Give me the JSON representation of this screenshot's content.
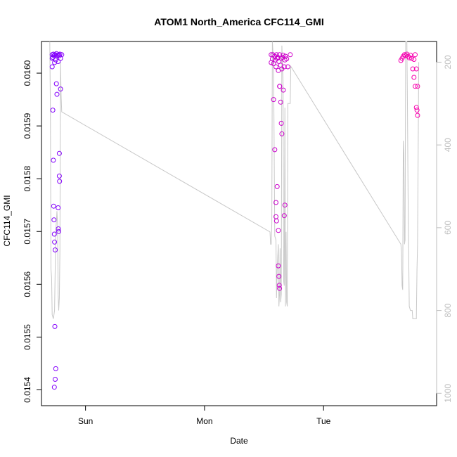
{
  "chart_data": {
    "type": "scatter",
    "title": "ATOM1 North_America CFC114_GMI",
    "xlabel": "Date",
    "ylabel": "CFC114_GMI",
    "x_unit": "day",
    "x_ticks": [
      {
        "label": "Sun",
        "value": 1.0
      },
      {
        "label": "Mon",
        "value": 2.0
      },
      {
        "label": "Tue",
        "value": 3.0
      }
    ],
    "xlim": [
      0.63,
      3.95
    ],
    "ylim": [
      0.01537,
      0.01606
    ],
    "y_ticks": [
      0.0154,
      0.0155,
      0.0156,
      0.0157,
      0.0158,
      0.0159,
      0.016
    ],
    "y_tick_labels": [
      "0.0154",
      "0.0155",
      "0.0156",
      "0.0157",
      "0.0158",
      "0.0159",
      "0.0160"
    ],
    "y2_label_ticks": [
      200,
      400,
      600,
      800,
      1000
    ],
    "y2_lim": [
      1030,
      150
    ],
    "colors": {
      "start": "#7f00ff",
      "end": "#ff00aa",
      "line": "#c8c8c8",
      "axis": "#000000",
      "right_axis": "#bdbdbd"
    },
    "grid": false,
    "series": [
      {
        "values": [
          [
            0.72,
            0.016035
          ],
          [
            0.72,
            0.016028
          ],
          [
            0.72,
            0.016012
          ],
          [
            0.725,
            0.01603
          ],
          [
            0.73,
            0.016036
          ],
          [
            0.735,
            0.016033
          ],
          [
            0.74,
            0.01602
          ],
          [
            0.745,
            0.016035
          ],
          [
            0.75,
            0.016025
          ],
          [
            0.755,
            0.016037
          ],
          [
            0.76,
            0.016032
          ],
          [
            0.765,
            0.016034
          ],
          [
            0.77,
            0.016022
          ],
          [
            0.775,
            0.016035
          ],
          [
            0.78,
            0.016033
          ],
          [
            0.785,
            0.016036
          ],
          [
            0.79,
            0.016028
          ],
          [
            0.8,
            0.016035
          ],
          [
            0.725,
            0.01593
          ],
          [
            0.73,
            0.015835
          ],
          [
            0.732,
            0.015748
          ],
          [
            0.735,
            0.015722
          ],
          [
            0.738,
            0.015695
          ],
          [
            0.74,
            0.01568
          ],
          [
            0.745,
            0.015665
          ],
          [
            0.742,
            0.01552
          ],
          [
            0.75,
            0.01544
          ],
          [
            0.745,
            0.01542
          ],
          [
            0.738,
            0.015405
          ],
          [
            0.755,
            0.01598
          ],
          [
            0.76,
            0.01596
          ],
          [
            0.77,
            0.015745
          ],
          [
            0.772,
            0.015705
          ],
          [
            0.775,
            0.0157
          ],
          [
            0.78,
            0.015848
          ],
          [
            0.78,
            0.015805
          ],
          [
            0.782,
            0.015795
          ],
          [
            0.79,
            0.01597
          ]
        ]
      },
      {
        "values": [
          [
            2.56,
            0.01602
          ],
          [
            2.56,
            0.016035
          ],
          [
            2.57,
            0.016027
          ],
          [
            2.575,
            0.016035
          ],
          [
            2.58,
            0.016018
          ],
          [
            2.59,
            0.016032
          ],
          [
            2.595,
            0.016025
          ],
          [
            2.6,
            0.016012
          ],
          [
            2.605,
            0.016035
          ],
          [
            2.61,
            0.016028
          ],
          [
            2.615,
            0.01603
          ],
          [
            2.62,
            0.016005
          ],
          [
            2.625,
            0.016022
          ],
          [
            2.63,
            0.016035
          ],
          [
            2.64,
            0.016015
          ],
          [
            2.645,
            0.016028
          ],
          [
            2.65,
            0.016008
          ],
          [
            2.655,
            0.01603
          ],
          [
            2.66,
            0.016034
          ],
          [
            2.67,
            0.016012
          ],
          [
            2.675,
            0.016025
          ],
          [
            2.68,
            0.016032
          ],
          [
            2.69,
            0.016027
          ],
          [
            2.7,
            0.016012
          ],
          [
            2.72,
            0.016035
          ],
          [
            2.58,
            0.01595
          ],
          [
            2.59,
            0.015855
          ],
          [
            2.6,
            0.015755
          ],
          [
            2.6,
            0.015728
          ],
          [
            2.605,
            0.01572
          ],
          [
            2.61,
            0.015785
          ],
          [
            2.62,
            0.015702
          ],
          [
            2.63,
            0.015975
          ],
          [
            2.632,
            0.015975
          ],
          [
            2.64,
            0.015945
          ],
          [
            2.645,
            0.015905
          ],
          [
            2.65,
            0.015885
          ],
          [
            2.662,
            0.015968
          ],
          [
            2.67,
            0.01573
          ],
          [
            2.675,
            0.01575
          ],
          [
            2.62,
            0.015635
          ],
          [
            2.625,
            0.015615
          ],
          [
            2.628,
            0.015598
          ],
          [
            2.63,
            0.015592
          ]
        ]
      },
      {
        "values": [
          [
            3.65,
            0.016024
          ],
          [
            3.66,
            0.016028
          ],
          [
            3.67,
            0.016032
          ],
          [
            3.68,
            0.016035
          ],
          [
            3.69,
            0.016033
          ],
          [
            3.7,
            0.016036
          ],
          [
            3.71,
            0.016032
          ],
          [
            3.72,
            0.016029
          ],
          [
            3.73,
            0.016034
          ],
          [
            3.74,
            0.016028
          ],
          [
            3.76,
            0.016026
          ],
          [
            3.77,
            0.016035
          ],
          [
            3.75,
            0.016008
          ],
          [
            3.76,
            0.015992
          ],
          [
            3.77,
            0.015975
          ],
          [
            3.78,
            0.015935
          ],
          [
            3.785,
            0.01593
          ],
          [
            3.79,
            0.01592
          ],
          [
            3.79,
            0.015975
          ],
          [
            3.78,
            0.016008
          ]
        ]
      }
    ],
    "pressure_line": [
      [
        0.7,
        110
      ],
      [
        0.705,
        320
      ],
      [
        0.71,
        700
      ],
      [
        0.715,
        720
      ],
      [
        0.72,
        810
      ],
      [
        0.73,
        820
      ],
      [
        0.74,
        800
      ],
      [
        0.75,
        610
      ],
      [
        0.76,
        560
      ],
      [
        0.765,
        590
      ],
      [
        0.77,
        760
      ],
      [
        0.775,
        800
      ],
      [
        0.78,
        770
      ],
      [
        0.785,
        660
      ],
      [
        0.79,
        200
      ],
      [
        0.795,
        280
      ],
      [
        0.8,
        320
      ],
      [
        2.55,
        610
      ],
      [
        2.555,
        640
      ],
      [
        2.56,
        640
      ],
      [
        2.565,
        590
      ],
      [
        2.57,
        150
      ],
      [
        2.58,
        200
      ],
      [
        2.59,
        620
      ],
      [
        2.6,
        630
      ],
      [
        2.605,
        770
      ],
      [
        2.61,
        700
      ],
      [
        2.62,
        640
      ],
      [
        2.625,
        790
      ],
      [
        2.63,
        760
      ],
      [
        2.635,
        650
      ],
      [
        2.64,
        780
      ],
      [
        2.645,
        760
      ],
      [
        2.65,
        160
      ],
      [
        2.66,
        250
      ],
      [
        2.665,
        730
      ],
      [
        2.67,
        740
      ],
      [
        2.675,
        310
      ],
      [
        2.68,
        790
      ],
      [
        2.685,
        610
      ],
      [
        2.69,
        780
      ],
      [
        2.695,
        790
      ],
      [
        2.7,
        300
      ],
      [
        2.72,
        300
      ],
      [
        2.725,
        210
      ],
      [
        3.65,
        640
      ],
      [
        3.655,
        660
      ],
      [
        3.66,
        740
      ],
      [
        3.665,
        750
      ],
      [
        3.67,
        390
      ],
      [
        3.675,
        420
      ],
      [
        3.68,
        640
      ],
      [
        3.685,
        630
      ],
      [
        3.69,
        100
      ],
      [
        3.7,
        150
      ],
      [
        3.705,
        300
      ],
      [
        3.71,
        520
      ],
      [
        3.72,
        790
      ],
      [
        3.73,
        800
      ],
      [
        3.745,
        800
      ],
      [
        3.75,
        820
      ],
      [
        3.77,
        820
      ],
      [
        3.78,
        820
      ],
      [
        3.785,
        700
      ],
      [
        3.79,
        640
      ],
      [
        3.8,
        200
      ]
    ]
  }
}
